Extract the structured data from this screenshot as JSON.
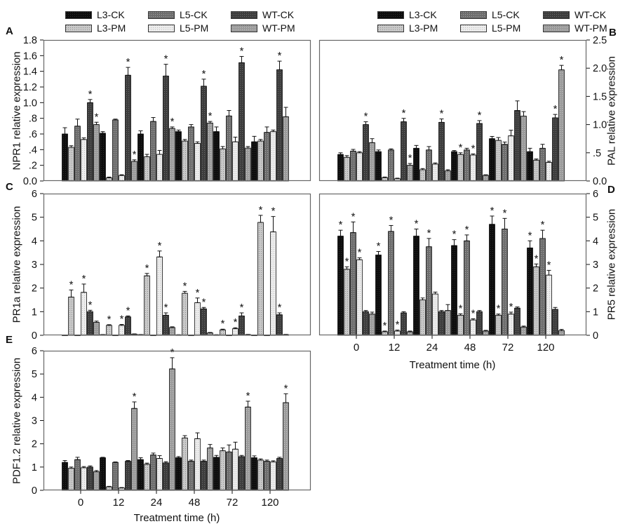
{
  "figure": {
    "panels": [
      {
        "letter": "A"
      },
      {
        "letter": "B"
      },
      {
        "letter": "C"
      },
      {
        "letter": "D"
      },
      {
        "letter": "E"
      }
    ],
    "sig_marker": "*",
    "background": "#ffffff",
    "box_border_color": "#666666"
  },
  "legend": {
    "items": [
      {
        "label": "L3-CK",
        "fill": "#0d0d0d",
        "dot": "#2b2b2b"
      },
      {
        "label": "L3-PM",
        "fill": "#c8c8c8",
        "dot": "#909090"
      },
      {
        "label": "L5-CK",
        "fill": "#6e6e6e",
        "dot": "#a3a3a3"
      },
      {
        "label": "L5-PM",
        "fill": "#ececec",
        "dot": "#c0c0c0"
      },
      {
        "label": "WT-CK",
        "fill": "#3d3d3d",
        "dot": "#6b6b6b"
      },
      {
        "label": "WT-PM",
        "fill": "#9b9b9b",
        "dot": "#c6c6c6"
      }
    ],
    "display_order": [
      0,
      2,
      4,
      1,
      3,
      5
    ]
  },
  "chart_data": [
    {
      "id": "A",
      "type": "bar",
      "ylabel": "NPR1 relative expression",
      "xlabel": "",
      "axis_side": "left",
      "show_x_labels": false,
      "grid": false,
      "ylim": [
        0,
        1.8
      ],
      "yticks": [
        "0.0",
        ".2",
        ".4",
        ".6",
        ".8",
        "1.0",
        "1.2",
        "1.4",
        "1.6",
        "1.8"
      ],
      "categories": [
        "0",
        "12",
        "24",
        "48",
        "72",
        "120"
      ],
      "series": [
        {
          "name": "L3-CK",
          "values": [
            0.6,
            0.61,
            0.6,
            0.63,
            0.63,
            0.5
          ],
          "err": [
            0.08,
            0.02,
            0.04,
            0.02,
            0.06,
            0.07
          ],
          "sig": [
            0,
            0,
            0,
            0,
            0,
            0
          ]
        },
        {
          "name": "L3-PM",
          "values": [
            0.43,
            0.04,
            0.31,
            0.51,
            0.41,
            0.51
          ],
          "err": [
            0.02,
            0.01,
            0.03,
            0.02,
            0.03,
            0.02
          ],
          "sig": [
            0,
            0,
            0,
            0,
            0,
            0
          ]
        },
        {
          "name": "L5-CK",
          "values": [
            0.7,
            0.78,
            0.76,
            0.69,
            0.83,
            0.62
          ],
          "err": [
            0.09,
            0.01,
            0.05,
            0.03,
            0.07,
            0.07
          ],
          "sig": [
            0,
            0,
            0,
            0,
            0,
            0
          ]
        },
        {
          "name": "L5-PM",
          "values": [
            0.53,
            0.07,
            0.34,
            0.48,
            0.5,
            0.63
          ],
          "err": [
            0.02,
            0.01,
            0.05,
            0.02,
            0.06,
            0.02
          ],
          "sig": [
            0,
            0,
            0,
            0,
            0,
            0
          ]
        },
        {
          "name": "WT-CK",
          "values": [
            1.0,
            1.35,
            1.34,
            1.21,
            1.51,
            1.42
          ],
          "err": [
            0.04,
            0.1,
            0.15,
            0.09,
            0.08,
            0.11
          ],
          "sig": [
            1,
            1,
            1,
            1,
            1,
            1
          ]
        },
        {
          "name": "WT-PM",
          "values": [
            0.72,
            0.25,
            0.67,
            0.74,
            0.42,
            0.82
          ],
          "err": [
            0.03,
            0.02,
            0.02,
            0.02,
            0.02,
            0.12
          ],
          "sig": [
            1,
            1,
            1,
            1,
            0,
            0
          ]
        }
      ]
    },
    {
      "id": "B",
      "type": "bar",
      "ylabel": "PAL relative expression",
      "xlabel": "",
      "axis_side": "right",
      "show_x_labels": false,
      "grid": false,
      "ylim": [
        0,
        2.5
      ],
      "yticks": [
        "0.0",
        ".5",
        "1.0",
        "1.5",
        "2.0",
        "2.5"
      ],
      "categories": [
        "0",
        "12",
        "24",
        "48",
        "72",
        "120"
      ],
      "series": [
        {
          "name": "L3-CK",
          "values": [
            0.47,
            0.52,
            0.58,
            0.52,
            0.75,
            0.52
          ],
          "err": [
            0.03,
            0.03,
            0.05,
            0.02,
            0.04,
            0.06
          ],
          "sig": [
            0,
            0,
            0,
            0,
            0,
            0
          ]
        },
        {
          "name": "L3-PM",
          "values": [
            0.42,
            0.06,
            0.2,
            0.47,
            0.72,
            0.37
          ],
          "err": [
            0.03,
            0.01,
            0.02,
            0.03,
            0.05,
            0.02
          ],
          "sig": [
            0,
            0,
            0,
            1,
            0,
            0
          ]
        },
        {
          "name": "L5-CK",
          "values": [
            0.53,
            0.55,
            0.55,
            0.55,
            0.65,
            0.58
          ],
          "err": [
            0.03,
            0.02,
            0.06,
            0.03,
            0.04,
            0.07
          ],
          "sig": [
            0,
            0,
            0,
            0,
            0,
            0
          ]
        },
        {
          "name": "L5-PM",
          "values": [
            0.5,
            0.04,
            0.3,
            0.46,
            0.8,
            0.33
          ],
          "err": [
            0.02,
            0.01,
            0.02,
            0.02,
            0.1,
            0.02
          ],
          "sig": [
            0,
            0,
            0,
            1,
            0,
            0
          ]
        },
        {
          "name": "WT-CK",
          "values": [
            1.0,
            1.05,
            1.04,
            1.02,
            1.25,
            1.12
          ],
          "err": [
            0.05,
            0.06,
            0.06,
            0.05,
            0.17,
            0.06
          ],
          "sig": [
            1,
            1,
            1,
            1,
            0,
            1
          ]
        },
        {
          "name": "WT-PM",
          "values": [
            0.68,
            0.28,
            0.18,
            0.1,
            1.15,
            1.97
          ],
          "err": [
            0.07,
            0.03,
            0.02,
            0.01,
            0.08,
            0.08
          ],
          "sig": [
            0,
            1,
            0,
            0,
            0,
            1
          ]
        }
      ]
    },
    {
      "id": "C",
      "type": "bar",
      "ylabel": "PR1a relative expression",
      "xlabel": "",
      "axis_side": "left",
      "show_x_labels": false,
      "grid": false,
      "ylim": [
        0,
        6
      ],
      "yticks": [
        "0",
        "1",
        "2",
        "3",
        "4",
        "5",
        "6"
      ],
      "categories": [
        "0",
        "12",
        "24",
        "48",
        "72",
        "120"
      ],
      "series": [
        {
          "name": "L3-CK",
          "values": [
            0.01,
            0.03,
            0.03,
            0.02,
            0.02,
            0.01
          ],
          "err": [
            0.005,
            0.005,
            0.005,
            0.005,
            0.005,
            0.005
          ],
          "sig": [
            0,
            0,
            0,
            0,
            0,
            0
          ]
        },
        {
          "name": "L3-PM",
          "values": [
            1.62,
            0.42,
            2.52,
            1.78,
            0.23,
            4.78
          ],
          "err": [
            0.3,
            0.03,
            0.1,
            0.08,
            0.03,
            0.3
          ],
          "sig": [
            1,
            1,
            1,
            1,
            1,
            1
          ]
        },
        {
          "name": "L5-CK",
          "values": [
            0.01,
            0.01,
            0.01,
            0.01,
            0.01,
            0.01
          ],
          "err": [
            0.005,
            0.005,
            0.005,
            0.005,
            0.005,
            0.005
          ],
          "sig": [
            0,
            0,
            0,
            0,
            0,
            0
          ]
        },
        {
          "name": "L5-PM",
          "values": [
            1.82,
            0.42,
            3.32,
            1.38,
            0.28,
            4.38
          ],
          "err": [
            0.35,
            0.04,
            0.25,
            0.2,
            0.04,
            0.65
          ],
          "sig": [
            1,
            1,
            1,
            1,
            1,
            1
          ]
        },
        {
          "name": "WT-CK",
          "values": [
            1.0,
            0.78,
            0.85,
            1.12,
            0.82,
            0.87
          ],
          "err": [
            0.06,
            0.04,
            0.1,
            0.06,
            0.13,
            0.08
          ],
          "sig": [
            1,
            1,
            1,
            1,
            1,
            1
          ]
        },
        {
          "name": "WT-PM",
          "values": [
            0.55,
            0.05,
            0.33,
            0.1,
            0.03,
            0.03
          ],
          "err": [
            0.05,
            0.01,
            0.03,
            0.02,
            0.01,
            0.01
          ],
          "sig": [
            0,
            0,
            0,
            0,
            0,
            0
          ]
        }
      ]
    },
    {
      "id": "D",
      "type": "bar",
      "ylabel": "PR5 relative expression",
      "xlabel": "Treatment time (h)",
      "axis_side": "right",
      "show_x_labels": true,
      "grid": false,
      "ylim": [
        0,
        6
      ],
      "yticks": [
        "0",
        "1",
        "2",
        "3",
        "4",
        "5",
        "6"
      ],
      "categories": [
        "0",
        "12",
        "24",
        "48",
        "72",
        "120"
      ],
      "series": [
        {
          "name": "L3-CK",
          "values": [
            4.2,
            3.4,
            4.2,
            3.8,
            4.7,
            3.7
          ],
          "err": [
            0.25,
            0.15,
            0.3,
            0.25,
            0.35,
            0.3
          ],
          "sig": [
            1,
            1,
            1,
            1,
            1,
            1
          ]
        },
        {
          "name": "L3-PM",
          "values": [
            2.8,
            0.15,
            1.5,
            0.85,
            0.85,
            2.9
          ],
          "err": [
            0.1,
            0.03,
            0.08,
            0.06,
            0.05,
            0.12
          ],
          "sig": [
            1,
            1,
            0,
            1,
            1,
            1
          ]
        },
        {
          "name": "L5-CK",
          "values": [
            4.35,
            4.4,
            3.75,
            4.0,
            4.5,
            4.1
          ],
          "err": [
            0.45,
            0.25,
            0.35,
            0.25,
            0.45,
            0.35
          ],
          "sig": [
            1,
            1,
            1,
            1,
            1,
            1
          ]
        },
        {
          "name": "L5-PM",
          "values": [
            3.2,
            0.18,
            1.75,
            0.65,
            0.9,
            2.55
          ],
          "err": [
            0.08,
            0.04,
            0.08,
            0.05,
            0.08,
            0.2
          ],
          "sig": [
            1,
            1,
            0,
            1,
            1,
            1
          ]
        },
        {
          "name": "WT-CK",
          "values": [
            1.0,
            0.95,
            1.0,
            1.0,
            1.15,
            1.1
          ],
          "err": [
            0.05,
            0.05,
            0.05,
            0.05,
            0.05,
            0.08
          ],
          "sig": [
            0,
            0,
            0,
            0,
            0,
            0
          ]
        },
        {
          "name": "WT-PM",
          "values": [
            0.9,
            0.15,
            1.05,
            0.18,
            0.35,
            0.2
          ],
          "err": [
            0.08,
            0.03,
            0.25,
            0.03,
            0.04,
            0.05
          ],
          "sig": [
            0,
            0,
            0,
            0,
            0,
            0
          ]
        }
      ]
    },
    {
      "id": "E",
      "type": "bar",
      "ylabel": "PDF1.2 relative expression",
      "xlabel": "Treatment time (h)",
      "axis_side": "left",
      "show_x_labels": true,
      "grid": false,
      "ylim": [
        0,
        6
      ],
      "yticks": [
        "0",
        "1",
        "2",
        "3",
        "4",
        "5",
        "6"
      ],
      "categories": [
        "0",
        "12",
        "24",
        "48",
        "72",
        "120"
      ],
      "series": [
        {
          "name": "L3-CK",
          "values": [
            1.2,
            1.4,
            1.32,
            1.4,
            1.42,
            1.4
          ],
          "err": [
            0.08,
            0.02,
            0.08,
            0.05,
            0.08,
            0.08
          ],
          "sig": [
            0,
            0,
            0,
            0,
            0,
            0
          ]
        },
        {
          "name": "L3-PM",
          "values": [
            0.95,
            0.15,
            1.12,
            2.25,
            1.7,
            1.3
          ],
          "err": [
            0.05,
            0.02,
            0.05,
            0.1,
            0.12,
            0.05
          ],
          "sig": [
            0,
            0,
            0,
            0,
            0,
            0
          ]
        },
        {
          "name": "L5-CK",
          "values": [
            1.32,
            1.2,
            1.52,
            1.25,
            1.65,
            1.25
          ],
          "err": [
            0.1,
            0.02,
            0.08,
            0.05,
            0.3,
            0.05
          ],
          "sig": [
            0,
            0,
            0,
            0,
            0,
            0
          ]
        },
        {
          "name": "L5-PM",
          "values": [
            0.97,
            0.1,
            1.37,
            2.22,
            1.77,
            1.22
          ],
          "err": [
            0.05,
            0.02,
            0.12,
            0.25,
            0.3,
            0.05
          ],
          "sig": [
            0,
            0,
            0,
            0,
            0,
            0
          ]
        },
        {
          "name": "WT-CK",
          "values": [
            1.0,
            1.25,
            1.18,
            1.25,
            1.45,
            1.37
          ],
          "err": [
            0.05,
            0.03,
            0.05,
            0.05,
            0.05,
            0.05
          ],
          "sig": [
            0,
            0,
            0,
            0,
            0,
            0
          ]
        },
        {
          "name": "WT-PM",
          "values": [
            0.8,
            3.52,
            5.22,
            1.82,
            3.58,
            3.77
          ],
          "err": [
            0.05,
            0.28,
            0.48,
            0.15,
            0.25,
            0.38
          ],
          "sig": [
            0,
            1,
            1,
            0,
            1,
            1
          ]
        }
      ]
    }
  ]
}
